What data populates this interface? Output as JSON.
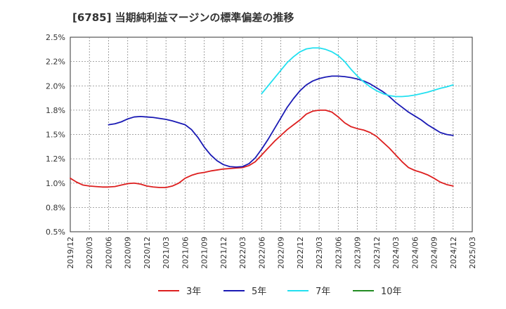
{
  "chart_data": {
    "type": "line",
    "title": "[6785]  当期純利益マージンの標準偏差の推移",
    "xlabel": "",
    "ylabel": "",
    "ylim": [
      0.5,
      2.5
    ],
    "yticks": [
      0.5,
      0.75,
      1.0,
      1.25,
      1.5,
      1.75,
      2.0,
      2.25,
      2.5
    ],
    "ytick_labels": [
      "0.5%",
      "0.8%",
      "1.0%",
      "1.2%",
      "1.5%",
      "1.8%",
      "2.0%",
      "2.2%",
      "2.5%"
    ],
    "x_ticks": [
      "2019/12",
      "2020/03",
      "2020/06",
      "2020/09",
      "2020/12",
      "2021/03",
      "2021/06",
      "2021/09",
      "2021/12",
      "2022/03",
      "2022/06",
      "2022/09",
      "2022/12",
      "2023/03",
      "2023/06",
      "2023/09",
      "2023/12",
      "2024/03",
      "2024/06",
      "2024/09",
      "2024/12",
      "2025/03"
    ],
    "grid": true,
    "legend_position": "bottom",
    "series": [
      {
        "name": "3年",
        "color": "#dd1f1f",
        "points": [
          [
            "2019/12",
            1.05
          ],
          [
            "2020/01",
            1.01
          ],
          [
            "2020/02",
            0.98
          ],
          [
            "2020/03",
            0.97
          ],
          [
            "2020/04",
            0.965
          ],
          [
            "2020/05",
            0.96
          ],
          [
            "2020/06",
            0.96
          ],
          [
            "2020/07",
            0.965
          ],
          [
            "2020/08",
            0.98
          ],
          [
            "2020/09",
            0.995
          ],
          [
            "2020/10",
            1.0
          ],
          [
            "2020/11",
            0.99
          ],
          [
            "2020/12",
            0.97
          ],
          [
            "2021/01",
            0.96
          ],
          [
            "2021/02",
            0.955
          ],
          [
            "2021/03",
            0.955
          ],
          [
            "2021/04",
            0.97
          ],
          [
            "2021/05",
            1.0
          ],
          [
            "2021/06",
            1.05
          ],
          [
            "2021/07",
            1.08
          ],
          [
            "2021/08",
            1.1
          ],
          [
            "2021/09",
            1.11
          ],
          [
            "2021/10",
            1.125
          ],
          [
            "2021/11",
            1.135
          ],
          [
            "2021/12",
            1.145
          ],
          [
            "2022/01",
            1.15
          ],
          [
            "2022/02",
            1.155
          ],
          [
            "2022/03",
            1.16
          ],
          [
            "2022/04",
            1.18
          ],
          [
            "2022/05",
            1.22
          ],
          [
            "2022/06",
            1.29
          ],
          [
            "2022/07",
            1.36
          ],
          [
            "2022/08",
            1.43
          ],
          [
            "2022/09",
            1.49
          ],
          [
            "2022/10",
            1.55
          ],
          [
            "2022/11",
            1.6
          ],
          [
            "2022/12",
            1.65
          ],
          [
            "2023/01",
            1.71
          ],
          [
            "2023/02",
            1.74
          ],
          [
            "2023/03",
            1.75
          ],
          [
            "2023/04",
            1.75
          ],
          [
            "2023/05",
            1.73
          ],
          [
            "2023/06",
            1.68
          ],
          [
            "2023/07",
            1.62
          ],
          [
            "2023/08",
            1.58
          ],
          [
            "2023/09",
            1.56
          ],
          [
            "2023/10",
            1.545
          ],
          [
            "2023/11",
            1.52
          ],
          [
            "2023/12",
            1.48
          ],
          [
            "2024/01",
            1.42
          ],
          [
            "2024/02",
            1.36
          ],
          [
            "2024/03",
            1.29
          ],
          [
            "2024/04",
            1.22
          ],
          [
            "2024/05",
            1.16
          ],
          [
            "2024/06",
            1.13
          ],
          [
            "2024/07",
            1.11
          ],
          [
            "2024/08",
            1.085
          ],
          [
            "2024/09",
            1.05
          ],
          [
            "2024/10",
            1.01
          ],
          [
            "2024/11",
            0.985
          ],
          [
            "2024/12",
            0.97
          ]
        ]
      },
      {
        "name": "5年",
        "color": "#1a1ab4",
        "points": [
          [
            "2020/06",
            1.6
          ],
          [
            "2020/07",
            1.61
          ],
          [
            "2020/08",
            1.63
          ],
          [
            "2020/09",
            1.66
          ],
          [
            "2020/10",
            1.68
          ],
          [
            "2020/11",
            1.685
          ],
          [
            "2020/12",
            1.68
          ],
          [
            "2021/01",
            1.675
          ],
          [
            "2021/02",
            1.665
          ],
          [
            "2021/03",
            1.655
          ],
          [
            "2021/04",
            1.64
          ],
          [
            "2021/05",
            1.62
          ],
          [
            "2021/06",
            1.6
          ],
          [
            "2021/07",
            1.55
          ],
          [
            "2021/08",
            1.47
          ],
          [
            "2021/09",
            1.37
          ],
          [
            "2021/10",
            1.29
          ],
          [
            "2021/11",
            1.23
          ],
          [
            "2021/12",
            1.19
          ],
          [
            "2022/01",
            1.17
          ],
          [
            "2022/02",
            1.165
          ],
          [
            "2022/03",
            1.17
          ],
          [
            "2022/04",
            1.2
          ],
          [
            "2022/05",
            1.26
          ],
          [
            "2022/06",
            1.35
          ],
          [
            "2022/07",
            1.45
          ],
          [
            "2022/08",
            1.56
          ],
          [
            "2022/09",
            1.67
          ],
          [
            "2022/10",
            1.78
          ],
          [
            "2022/11",
            1.87
          ],
          [
            "2022/12",
            1.95
          ],
          [
            "2023/01",
            2.01
          ],
          [
            "2023/02",
            2.05
          ],
          [
            "2023/03",
            2.075
          ],
          [
            "2023/04",
            2.09
          ],
          [
            "2023/05",
            2.1
          ],
          [
            "2023/06",
            2.1
          ],
          [
            "2023/07",
            2.095
          ],
          [
            "2023/08",
            2.085
          ],
          [
            "2023/09",
            2.07
          ],
          [
            "2023/10",
            2.05
          ],
          [
            "2023/11",
            2.02
          ],
          [
            "2023/12",
            1.98
          ],
          [
            "2024/01",
            1.94
          ],
          [
            "2024/02",
            1.89
          ],
          [
            "2024/03",
            1.83
          ],
          [
            "2024/04",
            1.78
          ],
          [
            "2024/05",
            1.73
          ],
          [
            "2024/06",
            1.69
          ],
          [
            "2024/07",
            1.65
          ],
          [
            "2024/08",
            1.6
          ],
          [
            "2024/09",
            1.56
          ],
          [
            "2024/10",
            1.52
          ],
          [
            "2024/11",
            1.5
          ],
          [
            "2024/12",
            1.49
          ]
        ]
      },
      {
        "name": "7年",
        "color": "#22e0f0",
        "points": [
          [
            "2022/06",
            1.92
          ],
          [
            "2022/07",
            2.0
          ],
          [
            "2022/08",
            2.08
          ],
          [
            "2022/09",
            2.16
          ],
          [
            "2022/10",
            2.24
          ],
          [
            "2022/11",
            2.3
          ],
          [
            "2022/12",
            2.35
          ],
          [
            "2023/01",
            2.38
          ],
          [
            "2023/02",
            2.39
          ],
          [
            "2023/03",
            2.39
          ],
          [
            "2023/04",
            2.375
          ],
          [
            "2023/05",
            2.35
          ],
          [
            "2023/06",
            2.31
          ],
          [
            "2023/07",
            2.25
          ],
          [
            "2023/08",
            2.17
          ],
          [
            "2023/09",
            2.1
          ],
          [
            "2023/10",
            2.04
          ],
          [
            "2023/11",
            1.99
          ],
          [
            "2023/12",
            1.95
          ],
          [
            "2024/01",
            1.92
          ],
          [
            "2024/02",
            1.9
          ],
          [
            "2024/03",
            1.89
          ],
          [
            "2024/04",
            1.89
          ],
          [
            "2024/05",
            1.895
          ],
          [
            "2024/06",
            1.905
          ],
          [
            "2024/07",
            1.92
          ],
          [
            "2024/08",
            1.935
          ],
          [
            "2024/09",
            1.955
          ],
          [
            "2024/10",
            1.975
          ],
          [
            "2024/11",
            1.99
          ],
          [
            "2024/12",
            2.01
          ]
        ]
      },
      {
        "name": "10年",
        "color": "#228b22",
        "points": []
      }
    ]
  }
}
